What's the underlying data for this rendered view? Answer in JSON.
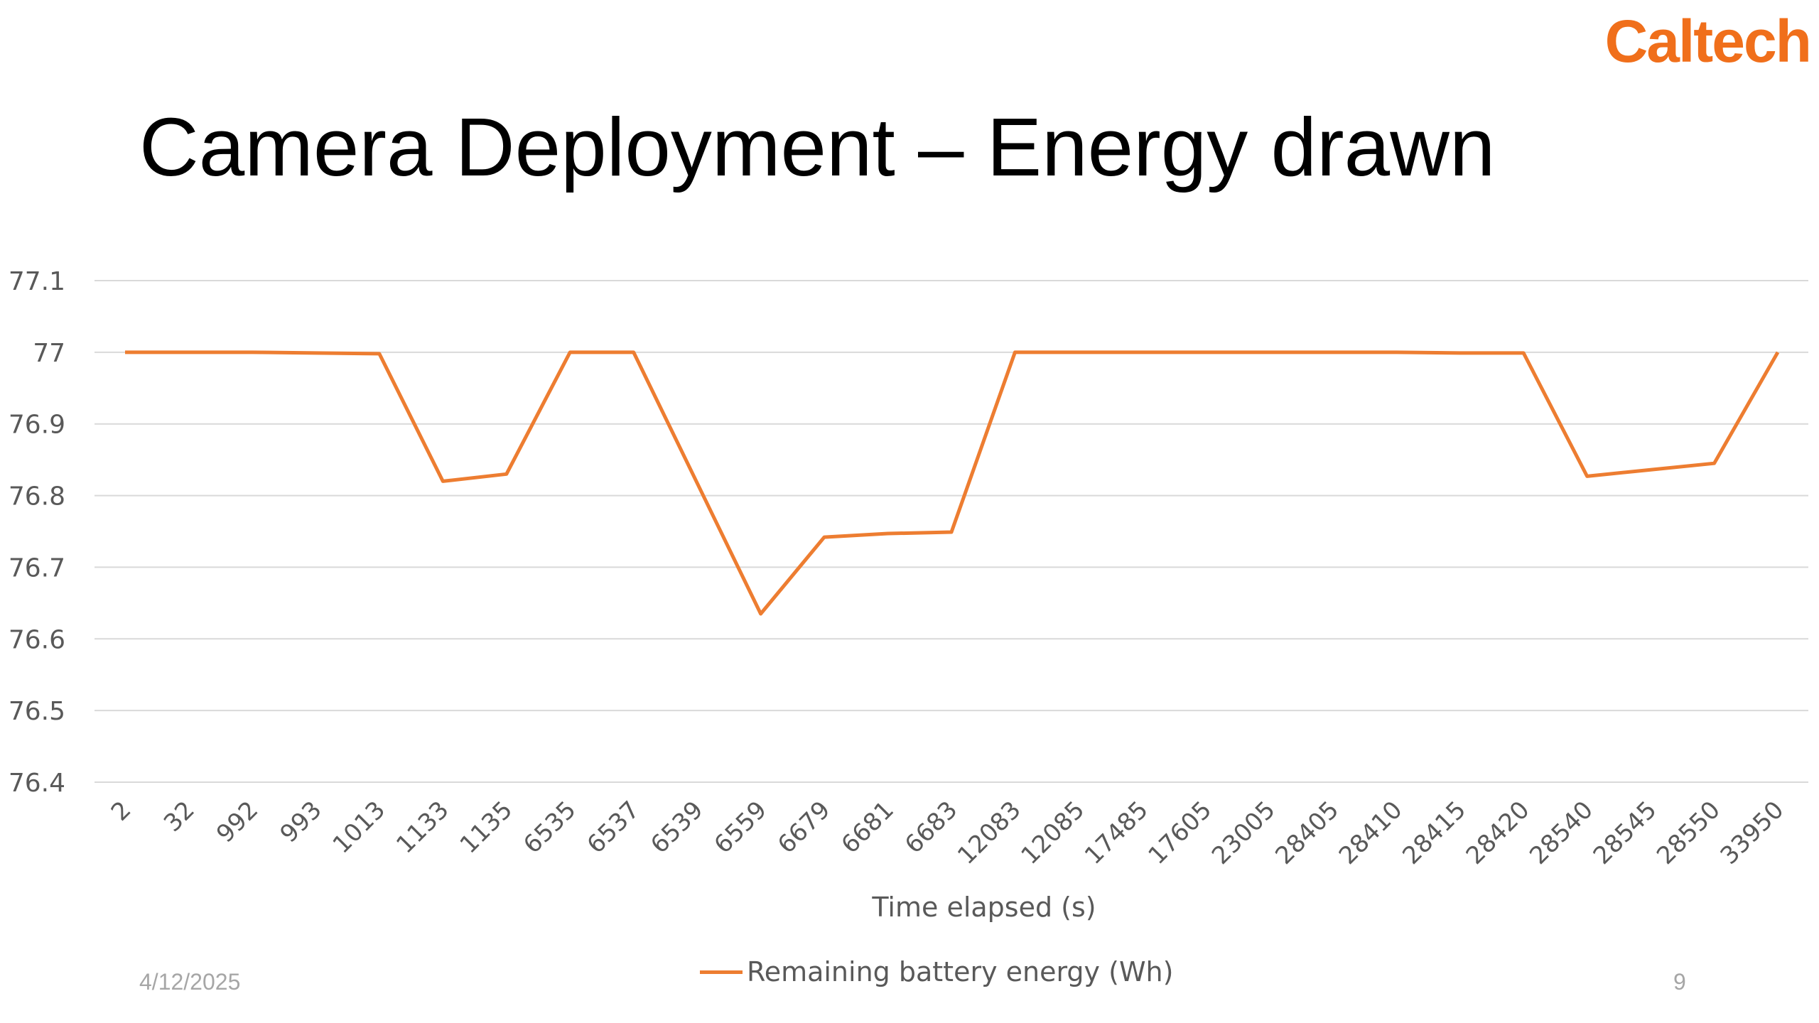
{
  "logo": "Caltech",
  "slide_title": "Camera Deployment – Energy drawn",
  "footer": {
    "date": "4/12/2025",
    "page": "9"
  },
  "chart_data": {
    "type": "line",
    "xlabel": "Time elapsed (s)",
    "ylabel": "",
    "ylim": [
      76.4,
      77.1
    ],
    "yticks": [
      "77.1",
      "77",
      "76.9",
      "76.8",
      "76.7",
      "76.6",
      "76.5",
      "76.4"
    ],
    "grid": true,
    "legend_position": "bottom",
    "categories": [
      "2",
      "32",
      "992",
      "993",
      "1013",
      "1133",
      "1135",
      "6535",
      "6537",
      "6539",
      "6559",
      "6679",
      "6681",
      "6683",
      "12083",
      "12085",
      "17485",
      "17605",
      "23005",
      "28405",
      "28410",
      "28415",
      "28420",
      "28540",
      "28545",
      "28550",
      "33950"
    ],
    "series": [
      {
        "name": "Remaining battery energy (Wh)",
        "color": "#ed7d31",
        "values": [
          77.0,
          77.0,
          77.0,
          76.999,
          76.998,
          76.82,
          76.83,
          77.0,
          77.0,
          null,
          76.635,
          76.742,
          76.747,
          76.749,
          77.0,
          77.0,
          77.0,
          77.0,
          77.0,
          77.0,
          77.0,
          76.999,
          76.999,
          76.827,
          null,
          76.845,
          77.0
        ]
      }
    ]
  }
}
